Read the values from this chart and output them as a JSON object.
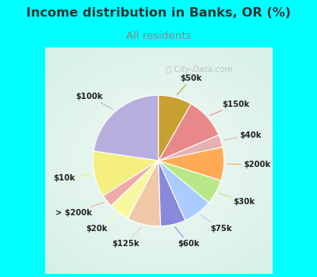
{
  "title": "Income distribution in Banks, OR (%)",
  "subtitle": "All residents",
  "title_color": "#333333",
  "subtitle_color": "#888888",
  "bg_color": "#00ffff",
  "chart_bg": "#e0f0e8",
  "watermark": "ⓘ City-Data.com",
  "labels": [
    "$100k",
    "$10k",
    "> $200k",
    "$20k",
    "$125k",
    "$60k",
    "$75k",
    "$30k",
    "$200k",
    "$40k",
    "$150k",
    "$50k"
  ],
  "values": [
    22,
    11,
    3,
    5,
    8,
    6,
    7,
    6,
    8,
    3,
    10,
    8
  ],
  "colors": [
    "#b8aedd",
    "#f5ef80",
    "#f0aaaa",
    "#f8f8a0",
    "#f0c8a8",
    "#8888dd",
    "#aaccff",
    "#b8e888",
    "#ffaa55",
    "#e8b0b0",
    "#e88888",
    "#c8a030"
  ],
  "startangle": 90,
  "pctdistance": 0.75,
  "labeldistance": 1.28
}
